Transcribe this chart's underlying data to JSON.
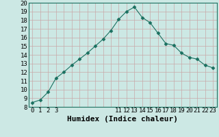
{
  "x": [
    0,
    1,
    2,
    3,
    4,
    5,
    6,
    7,
    8,
    9,
    10,
    11,
    12,
    13,
    14,
    15,
    16,
    17,
    18,
    19,
    20,
    21,
    22,
    23
  ],
  "y": [
    8.5,
    8.8,
    9.7,
    11.3,
    12.0,
    12.8,
    13.5,
    14.2,
    15.0,
    15.8,
    16.8,
    18.1,
    19.0,
    19.5,
    18.3,
    17.7,
    16.5,
    15.3,
    15.1,
    14.2,
    13.7,
    13.5,
    12.8,
    12.5
  ],
  "line_color": "#1a7060",
  "marker": "D",
  "marker_size": 2.5,
  "bg_color": "#cce8e4",
  "grid_major_color": "#c8a8a8",
  "grid_minor_color": "#b8d8d4",
  "xlabel": "Humidex (Indice chaleur)",
  "xlabel_fontsize": 8,
  "ylim": [
    8,
    20
  ],
  "xlim": [
    -0.5,
    23.5
  ],
  "yticks": [
    8,
    9,
    10,
    11,
    12,
    13,
    14,
    15,
    16,
    17,
    18,
    19,
    20
  ],
  "xticks_show": [
    0,
    1,
    2,
    3,
    11,
    12,
    13,
    14,
    15,
    16,
    17,
    18,
    19,
    20,
    21,
    22,
    23
  ],
  "xticks_all": [
    0,
    1,
    2,
    3,
    4,
    5,
    6,
    7,
    8,
    9,
    10,
    11,
    12,
    13,
    14,
    15,
    16,
    17,
    18,
    19,
    20,
    21,
    22,
    23
  ],
  "tick_fontsize": 6.5,
  "line_width": 0.8
}
